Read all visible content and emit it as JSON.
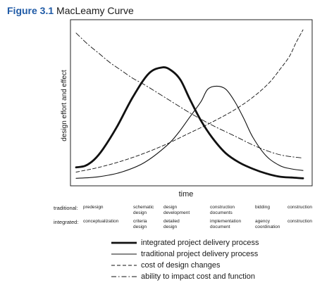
{
  "figure": {
    "label": "Figure 3.1",
    "name": "MacLeamy Curve"
  },
  "chart_data": {
    "type": "line",
    "xlabel": "time",
    "ylabel": "design effort and effect",
    "x_range": [
      0,
      100
    ],
    "y_range": [
      0,
      100
    ],
    "grid": false,
    "legend_position": "bottom",
    "series": [
      {
        "name": "integrated project delivery process",
        "style": "thick-solid",
        "x": [
          0,
          4,
          8,
          12,
          18,
          25,
          32,
          38,
          42,
          46,
          50,
          55,
          60,
          66,
          72,
          78,
          84,
          90,
          95,
          100
        ],
        "y": [
          10,
          11,
          15,
          22,
          36,
          55,
          70,
          74,
          72,
          66,
          54,
          40,
          29,
          19,
          13,
          9,
          6,
          4,
          3.5,
          3
        ]
      },
      {
        "name": "traditional project delivery process",
        "style": "thin-solid",
        "x": [
          0,
          10,
          20,
          30,
          40,
          45,
          50,
          55,
          58,
          62,
          66,
          70,
          74,
          78,
          84,
          90,
          95,
          100
        ],
        "y": [
          3,
          4,
          7,
          13,
          24,
          32,
          42,
          52,
          60,
          62,
          60,
          52,
          41,
          29,
          17,
          11,
          9,
          8
        ]
      },
      {
        "name": "cost of design changes",
        "style": "dashed",
        "x": [
          0,
          10,
          20,
          30,
          40,
          50,
          60,
          70,
          78,
          85,
          90,
          94,
          97,
          100
        ],
        "y": [
          7,
          10,
          14,
          19,
          25,
          32,
          39,
          47,
          55,
          64,
          73,
          81,
          90,
          98
        ]
      },
      {
        "name": "ability to impact cost and function",
        "style": "dash-dot",
        "x": [
          0,
          5,
          10,
          15,
          20,
          25,
          30,
          40,
          50,
          60,
          70,
          80,
          90,
          100
        ],
        "y": [
          96,
          89,
          83,
          77,
          72,
          67,
          63,
          54,
          45,
          37,
          30,
          23,
          18,
          16
        ]
      }
    ]
  },
  "phases": {
    "traditional_label": "traditional:",
    "integrated_label": "integrated:",
    "traditional": [
      [
        "predesign"
      ],
      [
        "schematic",
        "design"
      ],
      [
        "design",
        "development"
      ],
      [
        "construction",
        "documents"
      ],
      [
        "bidding"
      ],
      [
        "construction"
      ]
    ],
    "integrated": [
      [
        "conceptualization"
      ],
      [
        "criteria",
        "design"
      ],
      [
        "detailed",
        "design"
      ],
      [
        "implementation",
        "document"
      ],
      [
        "agency",
        "coordination"
      ],
      [
        "construction"
      ]
    ]
  },
  "legend": [
    {
      "label": "integrated project delivery process",
      "style": "thick-solid"
    },
    {
      "label": "traditional project delivery process",
      "style": "thin-solid"
    },
    {
      "label": "cost of design changes",
      "style": "dashed"
    },
    {
      "label": "ability to impact cost and function",
      "style": "dash-dot"
    }
  ]
}
